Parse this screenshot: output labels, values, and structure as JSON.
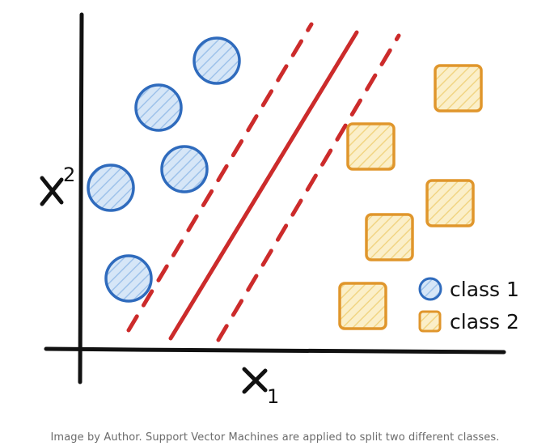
{
  "axes": {
    "x_label": "x",
    "x_subscript": "1",
    "y_label": "x",
    "y_subscript": "2"
  },
  "legend": {
    "class1": {
      "label": "class 1",
      "shape": "circle"
    },
    "class2": {
      "label": "class 2",
      "shape": "square"
    }
  },
  "colors": {
    "class1_stroke": "#2f6bbd",
    "class1_fill": "#b9d4f0",
    "class2_stroke": "#e0962c",
    "class2_fill": "#f7e2a6",
    "boundary": "#cc2b2b",
    "axis": "#111111"
  },
  "class1_points": 6,
  "class2_points": 6,
  "caption": "Image by Author. Support Vector Machines are applied to split two different classes."
}
